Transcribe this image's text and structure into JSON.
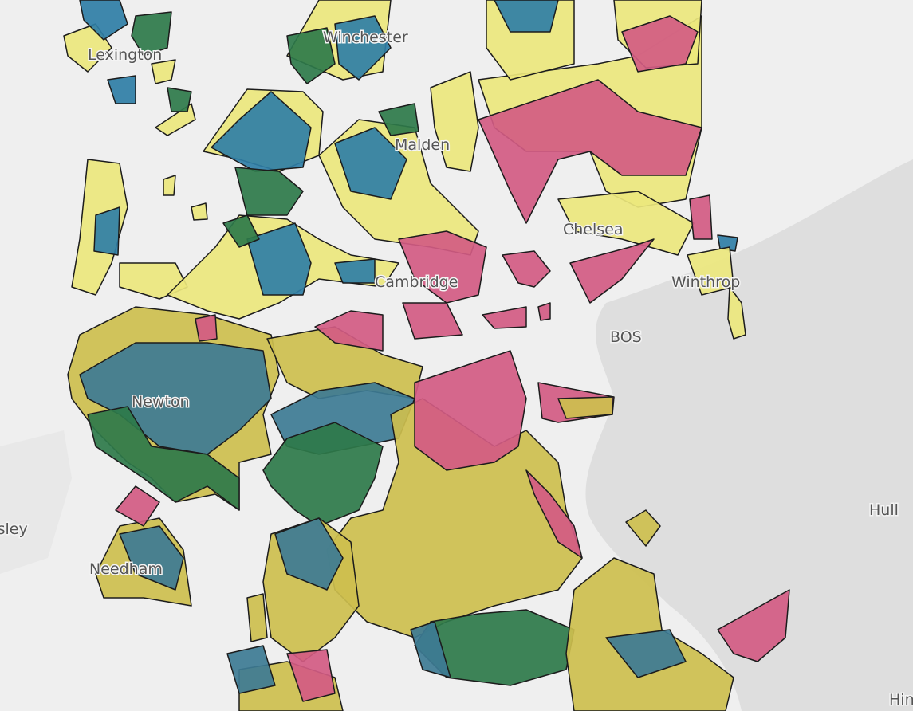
{
  "places": [
    "Lexington",
    "Winchester",
    "Malden",
    "Chelsea",
    "Cambridge",
    "Newton",
    "Winthrop",
    "BOS",
    "Hull",
    "Wellesley",
    "Needham",
    "Hingham"
  ]
}
